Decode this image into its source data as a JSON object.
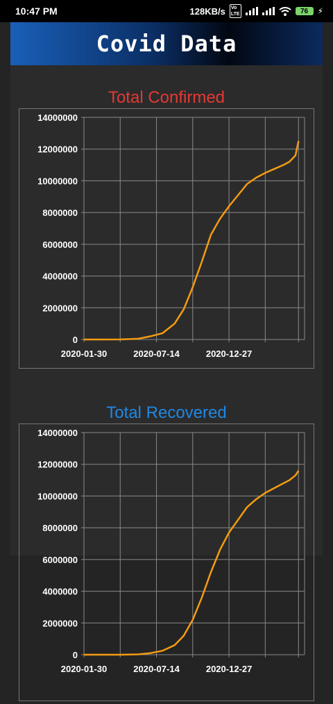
{
  "status_bar": {
    "time": "10:47 PM",
    "speed": "128KB/s",
    "battery": "76"
  },
  "header": {
    "title": "Covid Data"
  },
  "colors": {
    "confirmed_title": "#e53935",
    "recovered_title": "#1e88e5",
    "line": "#f39c12"
  },
  "chart_data": [
    {
      "type": "line",
      "title": "Total Confirmed",
      "x_ticks": [
        "2020-01-30",
        "2020-07-14",
        "2020-12-27"
      ],
      "y_ticks": [
        "14000000",
        "12000000",
        "10000000",
        "8000000",
        "6000000",
        "4000000",
        "2000000",
        "0"
      ],
      "ylim": [
        0,
        14000000
      ],
      "grid": true,
      "series": [
        {
          "x_days": [
            0,
            30,
            60,
            90,
            110,
            130,
            150,
            165,
            180,
            195,
            210,
            225,
            240,
            255,
            270,
            285,
            300,
            315,
            330,
            340,
            350,
            355
          ],
          "values": [
            0,
            1000,
            5000,
            50000,
            200000,
            400000,
            1000000,
            1900000,
            3300000,
            4900000,
            6600000,
            7600000,
            8400000,
            9100000,
            9800000,
            10200000,
            10500000,
            10750000,
            11000000,
            11200000,
            11600000,
            12500000
          ]
        }
      ]
    },
    {
      "type": "line",
      "title": "Total Recovered",
      "x_ticks": [
        "2020-01-30",
        "2020-07-14",
        "2020-12-27"
      ],
      "y_ticks": [
        "14000000",
        "12000000",
        "10000000",
        "8000000",
        "6000000",
        "4000000",
        "2000000",
        "0"
      ],
      "ylim": [
        0,
        14000000
      ],
      "grid": true,
      "series": [
        {
          "x_days": [
            0,
            30,
            60,
            90,
            110,
            130,
            150,
            165,
            180,
            195,
            210,
            225,
            240,
            255,
            270,
            285,
            300,
            315,
            330,
            340,
            350,
            355
          ],
          "values": [
            0,
            500,
            2000,
            20000,
            100000,
            250000,
            600000,
            1200000,
            2200000,
            3600000,
            5200000,
            6600000,
            7700000,
            8500000,
            9300000,
            9800000,
            10200000,
            10500000,
            10800000,
            11000000,
            11300000,
            11600000
          ]
        }
      ]
    }
  ]
}
